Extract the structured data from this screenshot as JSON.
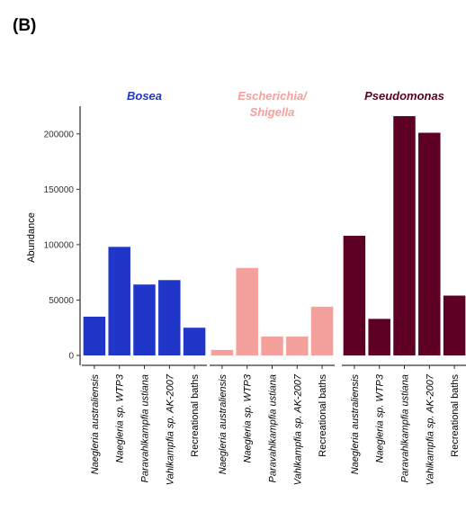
{
  "panel_label": "(B)",
  "chart_data": {
    "type": "bar",
    "ylabel": "Abundance",
    "xlabel": "",
    "ylim": [
      0,
      225000
    ],
    "yticks": [
      0,
      50000,
      100000,
      150000,
      200000
    ],
    "grid": false,
    "categories": [
      "Naegleria australiensis",
      "Naegleria sp. WTP3",
      "Paravahlkampfia ustiana",
      "Vahlkampfia sp. AK-2007",
      "Recreational baths"
    ],
    "facets": [
      {
        "title": "Bosea",
        "color": "#1f36c9",
        "values": [
          35000,
          98000,
          64000,
          68000,
          25000
        ]
      },
      {
        "title": "Escherichia/ Shigella",
        "color": "#f4a09c",
        "values": [
          5000,
          79000,
          17000,
          17000,
          44000
        ]
      },
      {
        "title": "Pseudomonas",
        "color": "#5e0024",
        "values": [
          108000,
          33000,
          216000,
          201000,
          54000
        ]
      }
    ]
  }
}
